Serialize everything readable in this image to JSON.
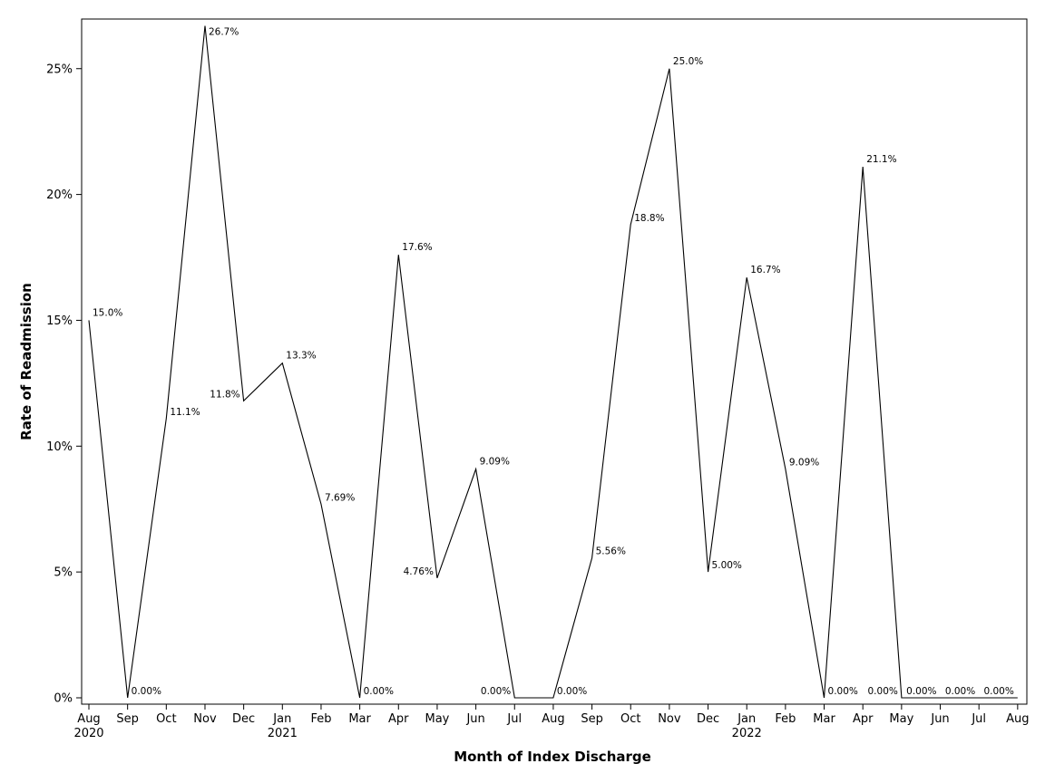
{
  "chart_data": {
    "type": "line",
    "xlabel": "Month of Index Discharge",
    "ylabel": "Rate of Readmission",
    "ylim": [
      0,
      27
    ],
    "yticks": [
      "0%",
      "5%",
      "10%",
      "15%",
      "20%",
      "25%"
    ],
    "ytick_values": [
      0,
      5,
      10,
      15,
      20,
      25
    ],
    "grid": false,
    "legend": "none",
    "line_color": "#000000",
    "points": [
      {
        "month": "Aug",
        "year": "2020",
        "value": 15.0,
        "label": "15.0%",
        "label_pos": "above-right"
      },
      {
        "month": "Sep",
        "year": "",
        "value": 0.0,
        "label": "0.00%",
        "label_pos": "right"
      },
      {
        "month": "Oct",
        "year": "",
        "value": 11.1,
        "label": "11.1%",
        "label_pos": "right"
      },
      {
        "month": "Nov",
        "year": "",
        "value": 26.7,
        "label": "26.7%",
        "label_pos": "right"
      },
      {
        "month": "Dec",
        "year": "",
        "value": 11.8,
        "label": "11.8%",
        "label_pos": "left"
      },
      {
        "month": "Jan",
        "year": "2021",
        "value": 13.3,
        "label": "13.3%",
        "label_pos": "above-right"
      },
      {
        "month": "Feb",
        "year": "",
        "value": 7.69,
        "label": "7.69%",
        "label_pos": "right"
      },
      {
        "month": "Mar",
        "year": "",
        "value": 0.0,
        "label": "0.00%",
        "label_pos": "right"
      },
      {
        "month": "Apr",
        "year": "",
        "value": 17.6,
        "label": "17.6%",
        "label_pos": "above-right"
      },
      {
        "month": "May",
        "year": "",
        "value": 4.76,
        "label": "4.76%",
        "label_pos": "left"
      },
      {
        "month": "Jun",
        "year": "",
        "value": 9.09,
        "label": "9.09%",
        "label_pos": "above-right"
      },
      {
        "month": "Jul",
        "year": "",
        "value": 0.0,
        "label": "0.00%",
        "label_pos": "left"
      },
      {
        "month": "Aug",
        "year": "",
        "value": 0.0,
        "label": "0.00%",
        "label_pos": "right"
      },
      {
        "month": "Sep",
        "year": "",
        "value": 5.56,
        "label": "5.56%",
        "label_pos": "right"
      },
      {
        "month": "Oct",
        "year": "",
        "value": 18.8,
        "label": "18.8%",
        "label_pos": "right"
      },
      {
        "month": "Nov",
        "year": "",
        "value": 25.0,
        "label": "25.0%",
        "label_pos": "above-right"
      },
      {
        "month": "Dec",
        "year": "",
        "value": 5.0,
        "label": "5.00%",
        "label_pos": "right"
      },
      {
        "month": "Jan",
        "year": "2022",
        "value": 16.7,
        "label": "16.7%",
        "label_pos": "above-right"
      },
      {
        "month": "Feb",
        "year": "",
        "value": 9.09,
        "label": "9.09%",
        "label_pos": "right"
      },
      {
        "month": "Mar",
        "year": "",
        "value": 0.0,
        "label": "0.00%",
        "label_pos": "right"
      },
      {
        "month": "Apr",
        "year": "",
        "value": 21.1,
        "label": "21.1%",
        "label_pos": "above-right"
      },
      {
        "month": "May",
        "year": "",
        "value": 0.0,
        "label": "0.00%",
        "label_pos": "left"
      },
      {
        "month": "Jun",
        "year": "",
        "value": 0.0,
        "label": "0.00%",
        "label_pos": "left"
      },
      {
        "month": "Jul",
        "year": "",
        "value": 0.0,
        "label": "0.00%",
        "label_pos": "left"
      },
      {
        "month": "Aug",
        "year": "",
        "value": 0.0,
        "label": "0.00%",
        "label_pos": "left"
      }
    ]
  }
}
